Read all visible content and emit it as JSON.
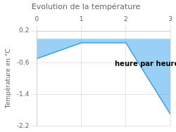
{
  "chart_data": {
    "type": "line",
    "title": "Evolution de la température",
    "ylabel": "Température en °C",
    "x": [
      0,
      1,
      2,
      3
    ],
    "values": [
      -0.5,
      -0.1,
      -0.1,
      -1.9
    ],
    "xlim": [
      0,
      3
    ],
    "ylim": [
      -2.2,
      0.2
    ],
    "xticks": [
      0,
      1,
      2,
      3
    ],
    "yticks": [
      0.2,
      -0.6,
      -1.4,
      -2.2
    ],
    "grid": true,
    "annotations": [
      {
        "text": "heure par heure",
        "x": 1.75,
        "y": -0.55
      }
    ]
  }
}
